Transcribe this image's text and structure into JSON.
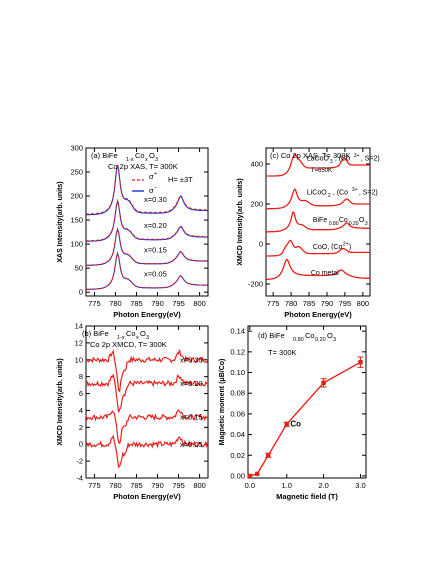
{
  "chart_data": [
    {
      "panel": "(a)",
      "type": "line",
      "title_lines": [
        "BiFe1-xCoxO3",
        "Co 2p XAS, T= 300K"
      ],
      "field_label": "H= ±3T",
      "xlabel": "Photon Energy(eV)",
      "ylabel": "XAS Intensity(arb. units)",
      "xlim": [
        773,
        802
      ],
      "ylim": [
        -8,
        300
      ],
      "x_ticks": [
        775,
        780,
        785,
        790,
        795,
        800
      ],
      "y_ticks": [
        0,
        50,
        100,
        150,
        200,
        250,
        300
      ],
      "legend": [
        {
          "label": "σ+",
          "color": "#e8201a",
          "style": "dashed"
        },
        {
          "label": "σ−",
          "color": "#1c2fd6",
          "style": "solid"
        }
      ],
      "series": [
        {
          "name": "x=0.30",
          "offset": 160,
          "main_peak": 100,
          "shoulder": 20,
          "l2_peak": 30
        },
        {
          "name": "x=0.20",
          "offset": 105,
          "main_peak": 80,
          "shoulder": 15,
          "l2_peak": 22
        },
        {
          "name": "x=0.15",
          "offset": 55,
          "main_peak": 72,
          "shoulder": 14,
          "l2_peak": 20
        },
        {
          "name": "x=0.05",
          "offset": 5,
          "main_peak": 72,
          "shoulder": 13,
          "l2_peak": 20
        }
      ]
    },
    {
      "panel": "(c)",
      "type": "line",
      "title_lines": [
        "Co 2p XAS, T= 300K"
      ],
      "xlabel": "Photon Energy(eV)",
      "ylabel": "XMCD Intensity(arb. units)",
      "xlim": [
        773,
        802
      ],
      "ylim": [
        -260,
        480
      ],
      "x_ticks": [
        775,
        780,
        785,
        790,
        795,
        800
      ],
      "y_ticks": [
        -200,
        0,
        200,
        400
      ],
      "series": [
        {
          "name": "LaCoO3, (Co3+, S=2)",
          "note": "T=650K",
          "offset": 340
        },
        {
          "name": "LiCoO2, (Co3+, S=2)",
          "offset": 175
        },
        {
          "name": "BiFe0.80Co0.20O3",
          "offset": 60
        },
        {
          "name": "CoO, (Co2+)",
          "offset": -60
        },
        {
          "name": "Co metal",
          "offset": -180
        }
      ]
    },
    {
      "panel": "(b)",
      "type": "line",
      "title_lines": [
        "BiFe1-xCoxO3",
        "Co 2p XMCD, T= 300K"
      ],
      "xlabel": "Photon Energy(eV)",
      "ylabel": "XMCD Intensity(arb. units)",
      "xlim": [
        773,
        802
      ],
      "ylim": [
        -4,
        14
      ],
      "x_ticks": [
        775,
        780,
        785,
        790,
        795,
        800
      ],
      "y_ticks": [
        -4,
        -2,
        0,
        2,
        4,
        6,
        8,
        10,
        12,
        14
      ],
      "series": [
        {
          "name": "x=0.30",
          "offset": 10
        },
        {
          "name": "x=0.20",
          "offset": 7.2
        },
        {
          "name": "x=0.15",
          "offset": 3.2
        },
        {
          "name": "x=0.05",
          "offset": 0
        }
      ]
    },
    {
      "panel": "(d)",
      "type": "line",
      "title_lines": [
        "BiFe0.80Co0.20O3",
        "T= 300K"
      ],
      "annotation": "Co",
      "xlabel": "Magnetic field (T)",
      "ylabel": "Magnetic moment (μB/Co)",
      "xlim": [
        -0.05,
        3.15
      ],
      "ylim": [
        -0.002,
        0.145
      ],
      "x_ticks": [
        0.0,
        1.0,
        2.0,
        3.0
      ],
      "y_ticks": [
        0.0,
        0.02,
        0.04,
        0.06,
        0.08,
        0.1,
        0.12,
        0.14
      ],
      "x": [
        0.0,
        0.2,
        0.5,
        1.0,
        2.0,
        3.0
      ],
      "values": [
        0.0,
        0.002,
        0.02,
        0.05,
        0.09,
        0.11
      ],
      "errors": [
        0.0,
        0.0,
        0.002,
        0.002,
        0.004,
        0.005
      ],
      "color": "#e8201a"
    }
  ]
}
